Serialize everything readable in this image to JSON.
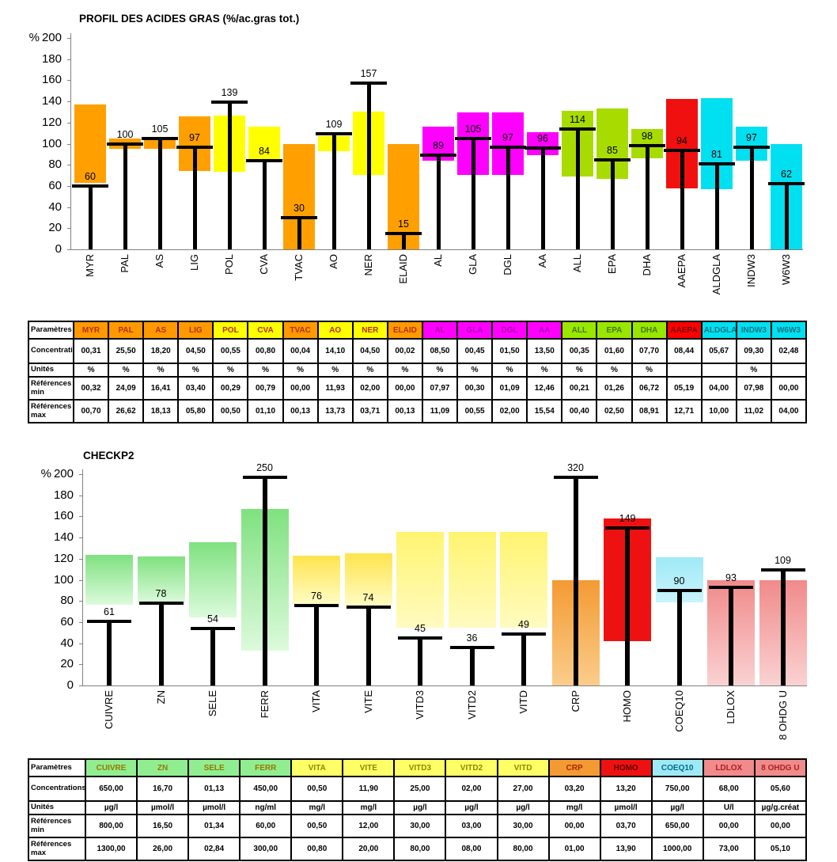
{
  "palette": {
    "orange": {
      "top": "#FFA000",
      "bottom": "#FFA000",
      "header": "#FF9900",
      "text": "#B33000"
    },
    "yellow": {
      "top": "#FFFF00",
      "bottom": "#FFFF00",
      "header": "#FFFF00",
      "text": "#B33000"
    },
    "magenta": {
      "top": "#FF00FF",
      "bottom": "#FF00FF",
      "header": "#FF00FF",
      "text": "#B000B0"
    },
    "green": {
      "top": "#A8DC00",
      "bottom": "#A8DC00",
      "header": "#99E600",
      "text": "#447700"
    },
    "red": {
      "top": "#F01010",
      "bottom": "#F01010",
      "header": "#FF0000",
      "text": "#700000"
    },
    "cyan": {
      "top": "#00E0F0",
      "bottom": "#00E0F0",
      "header": "#00E0F0",
      "text": "#007585"
    },
    "green2": {
      "top": "#7FE17F",
      "bottom": "#DCFADC",
      "header": "#90EE90",
      "text": "#997700"
    },
    "yellow2": {
      "top": "#FFE44D",
      "bottom": "#FFFCC4",
      "header": "#FFFF66",
      "text": "#8A8A00"
    },
    "paleyellow": {
      "top": "#FFF470",
      "bottom": "#FFFBC0",
      "header": "#FFFF66",
      "text": "#8A8A00"
    },
    "orange2": {
      "top": "#F49A33",
      "bottom": "#FACD8B",
      "header": "#F49A33",
      "text": "#A82800"
    },
    "red2": {
      "top": "#EE1111",
      "bottom": "#EE1111",
      "header": "#EE1111",
      "text": "#600000"
    },
    "cyan2": {
      "top": "#9FE9F7",
      "bottom": "#C9F4FC",
      "header": "#9FE9F7",
      "text": "#006A88"
    },
    "salmon": {
      "top": "#F18A8A",
      "bottom": "#FAD2D2",
      "header": "#F18A8A",
      "text": "#A82222"
    }
  },
  "charts": [
    {
      "title": "PROFIL DES ACIDES GRAS (%/ac.gras tot.)",
      "type": "bar",
      "ylabel": "%",
      "ylim": [
        0,
        200
      ],
      "ytick_step": 20,
      "clip_value": 197,
      "categories": [
        "MYR",
        "PAL",
        "AS",
        "LIG",
        "POL",
        "CVA",
        "TVAC",
        "AO",
        "NER",
        "ELAID",
        "AL",
        "GLA",
        "DGL",
        "AA",
        "ALL",
        "EPA",
        "DHA",
        "AAEPA",
        "ALDGLA",
        "INDW3",
        "W6W3"
      ],
      "values": [
        60,
        100,
        105,
        97,
        139,
        84,
        30,
        109,
        157,
        15,
        89,
        105,
        97,
        96,
        114,
        85,
        98,
        94,
        81,
        97,
        62
      ],
      "band_low": [
        62.7,
        95,
        95,
        73.9,
        73.4,
        83.6,
        0,
        93,
        70.1,
        0,
        83.6,
        70.6,
        70.6,
        89,
        68.9,
        67,
        86,
        58,
        57.1,
        84,
        0
      ],
      "band_high": [
        137.3,
        105,
        105,
        126.1,
        126.6,
        116.4,
        100,
        107,
        130,
        100,
        116.4,
        129.4,
        129.4,
        111,
        131.1,
        133,
        114,
        142,
        142.9,
        116,
        100
      ],
      "colors": [
        "orange",
        "orange",
        "orange",
        "orange",
        "yellow",
        "yellow",
        "orange",
        "yellow",
        "yellow",
        "orange",
        "magenta",
        "magenta",
        "magenta",
        "magenta",
        "green",
        "green",
        "green",
        "red",
        "cyan",
        "cyan",
        "cyan"
      ]
    },
    {
      "title": "CHECKP2",
      "type": "bar",
      "ylabel": "%",
      "ylim": [
        0,
        200
      ],
      "ytick_step": 20,
      "clip_value": 197,
      "categories": [
        "CUIVRE",
        "ZN",
        "SELE",
        "FERR",
        "VITA",
        "VITE",
        "VITD3",
        "VITD2",
        "VITD",
        "CRP",
        "HOMO",
        "COEQ10",
        "LDLOX",
        "8 OHDG U"
      ],
      "values": [
        61,
        78,
        54,
        250,
        76,
        74,
        45,
        36,
        49,
        320,
        149,
        90,
        93,
        109
      ],
      "band_low": [
        76.2,
        77.6,
        64.1,
        33.3,
        76.9,
        75,
        54.5,
        54.5,
        54.5,
        0,
        42,
        78.8,
        0,
        0
      ],
      "band_high": [
        123.8,
        122.4,
        135.9,
        166.7,
        123.1,
        125,
        145.5,
        145.5,
        145.5,
        100,
        158,
        121.2,
        100,
        100
      ],
      "colors": [
        "green2",
        "green2",
        "green2",
        "green2",
        "yellow2",
        "yellow2",
        "paleyellow",
        "paleyellow",
        "paleyellow",
        "orange2",
        "red2",
        "cyan2",
        "salmon",
        "salmon"
      ]
    }
  ],
  "tables": [
    {
      "row_headers": [
        "Paramètres",
        "Concentrations",
        "Unités",
        "Références min",
        "Références max"
      ],
      "columns": [
        {
          "label": "MYR",
          "color": "orange",
          "conc": "00,31",
          "unit": "%",
          "min": "00,32",
          "max": "00,70"
        },
        {
          "label": "PAL",
          "color": "orange",
          "conc": "25,50",
          "unit": "%",
          "min": "24,09",
          "max": "26,62"
        },
        {
          "label": "AS",
          "color": "orange",
          "conc": "18,20",
          "unit": "%",
          "min": "16,41",
          "max": "18,13"
        },
        {
          "label": "LIG",
          "color": "orange",
          "conc": "04,50",
          "unit": "%",
          "min": "03,40",
          "max": "05,80"
        },
        {
          "label": "POL",
          "color": "yellow",
          "conc": "00,55",
          "unit": "%",
          "min": "00,29",
          "max": "00,50"
        },
        {
          "label": "CVA",
          "color": "yellow",
          "conc": "00,80",
          "unit": "%",
          "min": "00,79",
          "max": "01,10"
        },
        {
          "label": "TVAC",
          "color": "orange",
          "conc": "00,04",
          "unit": "%",
          "min": "00,00",
          "max": "00,13"
        },
        {
          "label": "AO",
          "color": "yellow",
          "conc": "14,10",
          "unit": "%",
          "min": "11,93",
          "max": "13,73"
        },
        {
          "label": "NER",
          "color": "yellow",
          "conc": "04,50",
          "unit": "%",
          "min": "02,00",
          "max": "03,71"
        },
        {
          "label": "ELAID",
          "color": "orange",
          "conc": "00,02",
          "unit": "%",
          "min": "00,00",
          "max": "00,13"
        },
        {
          "label": "AL",
          "color": "magenta",
          "conc": "08,50",
          "unit": "%",
          "min": "07,97",
          "max": "11,09"
        },
        {
          "label": "GLA",
          "color": "magenta",
          "conc": "00,45",
          "unit": "%",
          "min": "00,30",
          "max": "00,55"
        },
        {
          "label": "DGL",
          "color": "magenta",
          "conc": "01,50",
          "unit": "%",
          "min": "01,09",
          "max": "02,00"
        },
        {
          "label": "AA",
          "color": "magenta",
          "conc": "13,50",
          "unit": "%",
          "min": "12,46",
          "max": "15,54"
        },
        {
          "label": "ALL",
          "color": "green",
          "conc": "00,35",
          "unit": "%",
          "min": "00,21",
          "max": "00,40"
        },
        {
          "label": "EPA",
          "color": "green",
          "conc": "01,60",
          "unit": "%",
          "min": "01,26",
          "max": "02,50"
        },
        {
          "label": "DHA",
          "color": "green",
          "conc": "07,70",
          "unit": "%",
          "min": "06,72",
          "max": "08,91"
        },
        {
          "label": "AAEPA",
          "color": "red",
          "conc": "08,44",
          "unit": "",
          "min": "05,19",
          "max": "12,71"
        },
        {
          "label": "ALDGLA",
          "color": "cyan",
          "conc": "05,67",
          "unit": "",
          "min": "04,00",
          "max": "10,00"
        },
        {
          "label": "INDW3",
          "color": "cyan",
          "conc": "09,30",
          "unit": "%",
          "min": "07,98",
          "max": "11,02"
        },
        {
          "label": "W6W3",
          "color": "cyan",
          "conc": "02,48",
          "unit": "",
          "min": "00,00",
          "max": "04,00"
        }
      ]
    },
    {
      "row_headers": [
        "Paramètres",
        "Concentrations",
        "Unités",
        "Références min",
        "Références max"
      ],
      "columns": [
        {
          "label": "CUIVRE",
          "color": "green2",
          "conc": "650,00",
          "unit": "µg/l",
          "min": "800,00",
          "max": "1300,00"
        },
        {
          "label": "ZN",
          "color": "green2",
          "conc": "16,70",
          "unit": "µmol/l",
          "min": "16,50",
          "max": "26,00"
        },
        {
          "label": "SELE",
          "color": "green2",
          "conc": "01,13",
          "unit": "µmol/l",
          "min": "01,34",
          "max": "02,84"
        },
        {
          "label": "FERR",
          "color": "green2",
          "conc": "450,00",
          "unit": "ng/ml",
          "min": "60,00",
          "max": "300,00"
        },
        {
          "label": "VITA",
          "color": "yellow2",
          "conc": "00,50",
          "unit": "mg/l",
          "min": "00,50",
          "max": "00,80"
        },
        {
          "label": "VITE",
          "color": "yellow2",
          "conc": "11,90",
          "unit": "mg/l",
          "min": "12,00",
          "max": "20,00"
        },
        {
          "label": "VITD3",
          "color": "paleyellow",
          "conc": "25,00",
          "unit": "µg/l",
          "min": "30,00",
          "max": "80,00"
        },
        {
          "label": "VITD2",
          "color": "paleyellow",
          "conc": "02,00",
          "unit": "µg/l",
          "min": "03,00",
          "max": "08,00"
        },
        {
          "label": "VITD",
          "color": "paleyellow",
          "conc": "27,00",
          "unit": "µg/l",
          "min": "30,00",
          "max": "80,00"
        },
        {
          "label": "CRP",
          "color": "orange2",
          "conc": "03,20",
          "unit": "mg/l",
          "min": "00,00",
          "max": "01,00"
        },
        {
          "label": "HOMO",
          "color": "red2",
          "conc": "13,20",
          "unit": "µmol/l",
          "min": "03,70",
          "max": "13,90"
        },
        {
          "label": "COEQ10",
          "color": "cyan2",
          "conc": "750,00",
          "unit": "µg/l",
          "min": "650,00",
          "max": "1000,00"
        },
        {
          "label": "LDLOX",
          "color": "salmon",
          "conc": "68,00",
          "unit": "U/l",
          "min": "00,00",
          "max": "73,00"
        },
        {
          "label": "8 OHDG U",
          "color": "salmon",
          "conc": "05,60",
          "unit": "µg/g.créat",
          "min": "00,00",
          "max": "05,10"
        }
      ]
    }
  ]
}
